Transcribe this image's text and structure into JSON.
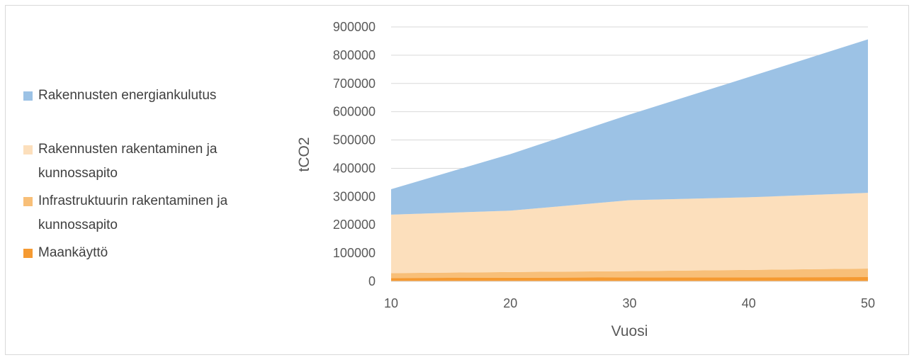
{
  "chart_data": {
    "type": "area",
    "stacked": true,
    "x": [
      10,
      20,
      30,
      40,
      50
    ],
    "xlabel": "Vuosi",
    "ylabel": "tCO2",
    "ylim": [
      0,
      900000
    ],
    "yticks": [
      0,
      100000,
      200000,
      300000,
      400000,
      500000,
      600000,
      700000,
      800000,
      900000
    ],
    "xticks": [
      10,
      20,
      30,
      40,
      50
    ],
    "grid": "horizontal",
    "legend_position": "left",
    "series": [
      {
        "name": "Maankäyttö",
        "color": "#f59a32",
        "values": [
          12000,
          13000,
          14000,
          14500,
          15000
        ]
      },
      {
        "name": "Infrastruktuurin rakentaminen ja kunnossapito",
        "color": "#f8bf78",
        "values": [
          17000,
          20000,
          22000,
          26000,
          30000
        ]
      },
      {
        "name": "Rakennusten rakentaminen ja kunnossapito",
        "color": "#fcdfbc",
        "values": [
          207000,
          217000,
          251000,
          257000,
          268000
        ]
      },
      {
        "name": "Rakennusten energiankulutus",
        "color": "#9cc2e5",
        "values": [
          90000,
          200000,
          303000,
          425000,
          543000
        ]
      }
    ]
  }
}
